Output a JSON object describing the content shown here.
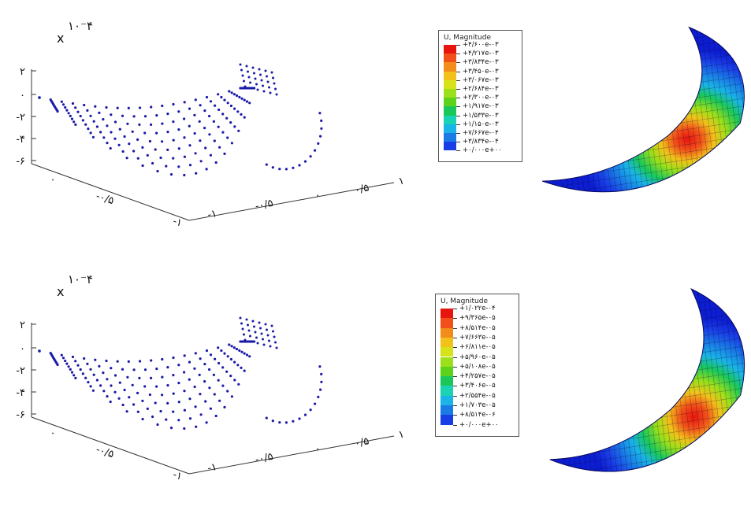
{
  "panels": [
    {
      "plot": {
        "multiplier": "x",
        "exponent": "۱۰⁻۴",
        "zticks": [
          "۲",
          "۰",
          "-۲",
          "-۴",
          "-۶"
        ],
        "xticks_left": [
          "۰",
          "-۰/۵",
          "-۱"
        ],
        "yticks_right": [
          "-۱",
          "-۰/۵",
          "۰",
          "۰/۵",
          "۱"
        ]
      },
      "legend": {
        "title": "U, Magnitude",
        "labels": [
          "+۴/۶۰۰e-۰۳",
          "+۴/۲۱۷e-۰۳",
          "+۳/۸۳۴e-۰۳",
          "+۳/۴۵۰e-۰۳",
          "+۳/۰۶۷e-۰۳",
          "+۲/۶۸۴e-۰۳",
          "+۲/۳۰۰e-۰۳",
          "+۱/۹۱۷e-۰۳",
          "+۱/۵۳۳e-۰۳",
          "+۱/۱۵۰e-۰۳",
          "+۷/۶۶۷e-۰۴",
          "+۳/۸۳۴e-۰۴",
          "+۰/۰۰۰e+۰۰"
        ]
      }
    },
    {
      "plot": {
        "multiplier": "x",
        "exponent": "۱۰⁻۴",
        "zticks": [
          "۲",
          "۰",
          "-۲",
          "-۴",
          "-۶"
        ],
        "xticks_left": [
          "۰",
          "-۰/۵",
          "-۱"
        ],
        "yticks_right": [
          "-۱",
          "-۰/۵",
          "۰",
          "۰/۵",
          "۱"
        ]
      },
      "legend": {
        "title": "U, Magnitude",
        "labels": [
          "+۱/۰۲۲e-۰۴",
          "+۹/۳۶۵e-۰۵",
          "+۸/۵۱۴e-۰۵",
          "+۷/۶۶۳e-۰۵",
          "+۶/۸۱۱e-۰۵",
          "+۵/۹۶۰e-۰۵",
          "+۵/۱۰۸e-۰۵",
          "+۴/۲۵۷e-۰۵",
          "+۳/۴۰۶e-۰۵",
          "+۲/۵۵۴e-۰۵",
          "+۱/۷۰۳e-۰۵",
          "+۸/۵۱۴e-۰۶",
          "+۰/۰۰۰e+۰۰"
        ]
      }
    }
  ],
  "colors": {
    "scale": [
      "#e8150f",
      "#f2501a",
      "#f28c1a",
      "#f2c21a",
      "#d6e31a",
      "#9be01a",
      "#5cd21a",
      "#1ac85a",
      "#1ad2b4",
      "#1ab4e6",
      "#1a7ae6",
      "#1a3ee6",
      "#0d1ed2"
    ],
    "points": "#1a1aa8",
    "axis": "#333333"
  },
  "chart_data": [
    {
      "type": "scatter",
      "title": "",
      "xlabel": "",
      "ylabel": "",
      "zlabel": "",
      "exponent_label": "x ۱۰⁻۴",
      "zlim": [
        -6,
        2
      ],
      "xlim": [
        -1,
        0
      ],
      "ylim": [
        -1,
        1
      ],
      "grid": false,
      "description_values": "3D point cloud of a deformed membrane surface; depth ranges from 0 at the clamped edge to about -6 at the deepest point"
    },
    {
      "type": "heatmap",
      "title": "U, Magnitude",
      "colorbar_levels": [
        "+۴/۶۰۰e-۰۳",
        "+۴/۲۱۷e-۰۳",
        "+۳/۸۳۴e-۰۳",
        "+۳/۴۵۰e-۰۳",
        "+۳/۰۶۷e-۰۳",
        "+۲/۶۸۴e-۰۳",
        "+۲/۳۰۰e-۰۳",
        "+۱/۹۱۷e-۰۳",
        "+۱/۵۳۳e-۰۳",
        "+۱/۱۵۰e-۰۳",
        "+۷/۶۶۷e-۰۴",
        "+۳/۸۳۴e-۰۴",
        "+۰/۰۰۰e+۰۰"
      ]
    },
    {
      "type": "scatter",
      "title": "",
      "xlabel": "",
      "ylabel": "",
      "zlabel": "",
      "exponent_label": "x ۱۰⁻۴",
      "zlim": [
        -6,
        2
      ],
      "xlim": [
        -1,
        0
      ],
      "ylim": [
        -1,
        1
      ],
      "grid": false
    },
    {
      "type": "heatmap",
      "title": "U, Magnitude",
      "colorbar_levels": [
        "+۱/۰۲۲e-۰۴",
        "+۹/۳۶۵e-۰۵",
        "+۸/۵۱۴e-۰۵",
        "+۷/۶۶۳e-۰۵",
        "+۶/۸۱۱e-۰۵",
        "+۵/۹۶۰e-۰۵",
        "+۵/۱۰۸e-۰۵",
        "+۴/۲۵۷e-۰۵",
        "+۳/۴۰۶e-۰۵",
        "+۲/۵۵۴e-۰۵",
        "+۱/۷۰۳e-۰۵",
        "+۸/۵۱۴e-۰۶",
        "+۰/۰۰۰e+۰۰"
      ]
    }
  ]
}
